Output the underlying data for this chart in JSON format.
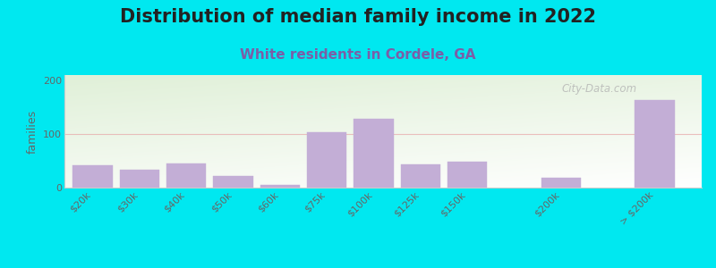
{
  "title": "Distribution of median family income in 2022",
  "subtitle": "White residents in Cordele, GA",
  "ylabel": "families",
  "categories": [
    "$20k",
    "$30k",
    "$40k",
    "$50k",
    "$60k",
    "$75k",
    "$100k",
    "$125k",
    "$150k",
    "$200k",
    "> $200k"
  ],
  "values": [
    42,
    33,
    45,
    22,
    5,
    103,
    128,
    44,
    48,
    18,
    163
  ],
  "bar_color": "#c3aed6",
  "bar_edgecolor": "#c3aed6",
  "background_outer": "#00e8f0",
  "plot_bg_color_topleft": "#dff0d8",
  "plot_bg_color_white": "#ffffff",
  "title_fontsize": 15,
  "subtitle_fontsize": 11,
  "subtitle_color": "#7b5ea7",
  "ylabel_fontsize": 9,
  "tick_fontsize": 8,
  "ylim": [
    0,
    210
  ],
  "yticks": [
    0,
    100,
    200
  ],
  "watermark": "City-Data.com",
  "watermark_color": "#b0b0b0",
  "hline_color": "#e8b0b0",
  "hline_y": 100,
  "bar_positions": [
    0,
    1,
    2,
    3,
    4,
    5,
    6,
    7,
    8,
    10,
    12
  ],
  "bar_width": 0.85
}
